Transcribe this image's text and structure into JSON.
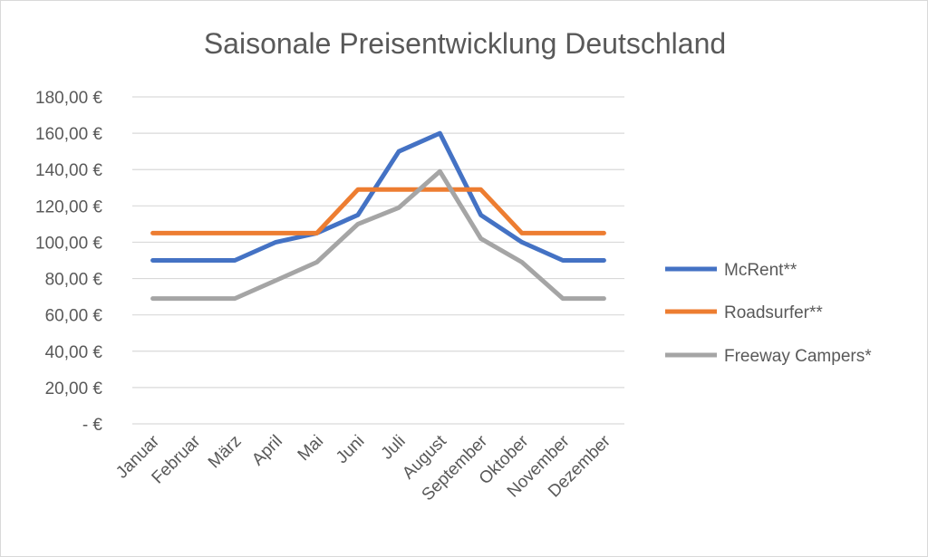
{
  "chart_data": {
    "type": "line",
    "title": "Saisonale Preisentwicklung Deutschland",
    "xlabel": "",
    "ylabel": "",
    "ylim": [
      0,
      180
    ],
    "y_ticks": [
      {
        "value": 0,
        "label": "-   €"
      },
      {
        "value": 20,
        "label": "20,00 €"
      },
      {
        "value": 40,
        "label": "40,00 €"
      },
      {
        "value": 60,
        "label": "60,00 €"
      },
      {
        "value": 80,
        "label": "80,00 €"
      },
      {
        "value": 100,
        "label": "100,00 €"
      },
      {
        "value": 120,
        "label": "120,00 €"
      },
      {
        "value": 140,
        "label": "140,00 €"
      },
      {
        "value": 160,
        "label": "160,00 €"
      },
      {
        "value": 180,
        "label": "180,00 €"
      }
    ],
    "categories": [
      "Januar",
      "Februar",
      "März",
      "April",
      "Mai",
      "Juni",
      "Juli",
      "August",
      "September",
      "Oktober",
      "November",
      "Dezember"
    ],
    "grid": true,
    "legend_position": "right",
    "series": [
      {
        "name": "McRent**",
        "color": "#4472c4",
        "values": [
          90,
          90,
          90,
          100,
          105,
          115,
          150,
          160,
          115,
          100,
          90,
          90
        ]
      },
      {
        "name": "Roadsurfer**",
        "color": "#ed7d31",
        "values": [
          105,
          105,
          105,
          105,
          105,
          129,
          129,
          129,
          129,
          105,
          105,
          105
        ]
      },
      {
        "name": "Freeway Campers*",
        "color": "#a5a5a5",
        "values": [
          69,
          69,
          69,
          79,
          89,
          110,
          119,
          139,
          102,
          89,
          69,
          69
        ]
      }
    ]
  }
}
